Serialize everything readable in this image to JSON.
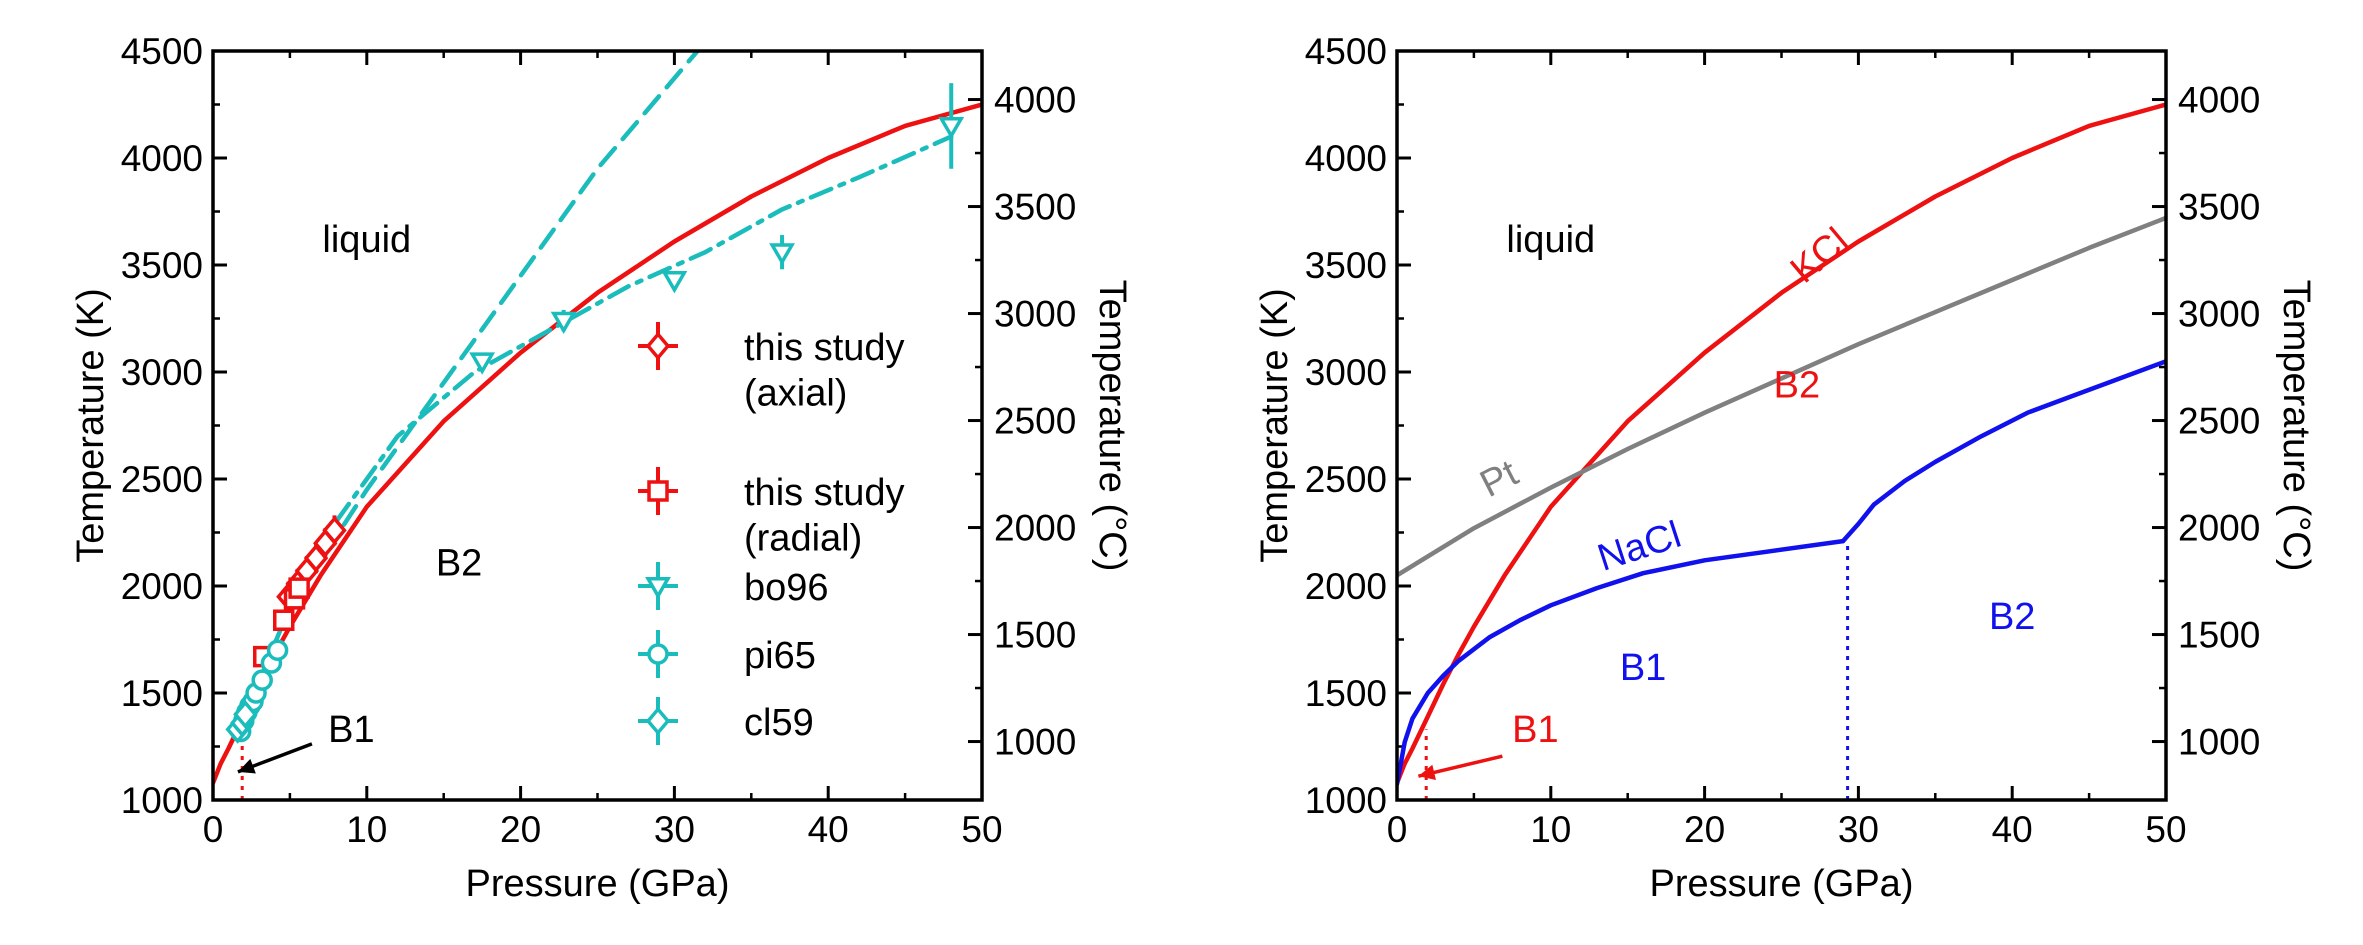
{
  "colors": {
    "kcl": "#ee1111",
    "cyan": "#1bbcbc",
    "nacl": "#1111ee",
    "pt": "#808080",
    "black": "#000000"
  },
  "chart_data": [
    {
      "type": "line",
      "xlabel": "Pressure (GPa)",
      "ylabel": "Temperature (K)",
      "y2label": "Temperature (°C)",
      "xlim": [
        0,
        50
      ],
      "ylim": [
        1000,
        4500
      ],
      "xticks": [
        0,
        10,
        20,
        30,
        40,
        50
      ],
      "yticks": [
        1000,
        1500,
        2000,
        2500,
        3000,
        3500,
        4000,
        4500
      ],
      "y2ticks": [
        1000,
        1500,
        2000,
        2500,
        3000,
        3500,
        4000
      ],
      "regions": [
        {
          "text": "liquid",
          "x": 10,
          "y": 3560,
          "color": "#000000"
        },
        {
          "text": "B2",
          "x": 16,
          "y": 2050,
          "color": "#000000"
        },
        {
          "text": "B1",
          "x": 9,
          "y": 1270,
          "color": "#000000"
        }
      ],
      "lines": [
        {
          "role": "melting-curve",
          "color": "#ee1111",
          "style": "solid",
          "x": [
            0,
            0.5,
            1,
            2,
            3,
            4,
            5,
            7,
            10,
            15,
            20,
            25,
            30,
            35,
            40,
            45,
            50
          ],
          "y": [
            1080,
            1170,
            1240,
            1390,
            1540,
            1680,
            1810,
            2050,
            2370,
            2770,
            3090,
            3370,
            3610,
            3820,
            4000,
            4150,
            4250
          ]
        },
        {
          "role": "b1-b2-boundary",
          "color": "#ee1111",
          "style": "dotted",
          "x": [
            1.9,
            1.9
          ],
          "y": [
            1000,
            1330
          ]
        },
        {
          "role": "fit-dashed",
          "color": "#1bbcbc",
          "style": "dashed",
          "x": [
            1.5,
            5,
            10,
            15,
            20,
            25,
            31.5
          ],
          "y": [
            1300,
            1900,
            2450,
            2950,
            3450,
            3950,
            4500
          ]
        },
        {
          "role": "fit-dashdot",
          "color": "#1bbcbc",
          "style": "dashdot",
          "x": [
            8,
            12,
            17,
            22,
            27,
            32,
            37,
            42,
            48
          ],
          "y": [
            2300,
            2700,
            3000,
            3200,
            3400,
            3560,
            3760,
            3910,
            4100
          ]
        }
      ],
      "series": [
        {
          "name": "this study\n(axial)",
          "marker": "diamond",
          "color": "#ee1111",
          "x": [
            4.9,
            5.5,
            6.1,
            6.7,
            7.3,
            7.9
          ],
          "y": [
            1950,
            2010,
            2070,
            2130,
            2200,
            2260
          ],
          "yerr": 70
        },
        {
          "name": "this study\n(radial)",
          "marker": "square",
          "color": "#ee1111",
          "x": [
            3.3,
            4.6,
            5.3,
            5.6
          ],
          "y": [
            1670,
            1840,
            1940,
            1990
          ],
          "yerr": 0
        },
        {
          "name": "bo96",
          "marker": "triangle-down",
          "color": "#1bbcbc",
          "x": [
            17.5,
            22.8,
            30,
            37,
            48
          ],
          "y": [
            3050,
            3240,
            3430,
            3560,
            4150
          ],
          "yerr_list": [
            0,
            50,
            0,
            80,
            200
          ]
        },
        {
          "name": "pi65",
          "marker": "circle",
          "color": "#1bbcbc",
          "x": [
            1.8,
            2.0,
            2.2,
            2.4,
            2.6,
            2.8,
            3.2,
            3.8,
            4.2
          ],
          "y": [
            1320,
            1370,
            1410,
            1440,
            1460,
            1500,
            1560,
            1640,
            1700
          ],
          "yerr": 0
        },
        {
          "name": "cl59",
          "marker": "diamond",
          "color": "#1bbcbc",
          "x": [
            1.6,
            1.9,
            2.1
          ],
          "y": [
            1330,
            1360,
            1400
          ],
          "yerr": 0
        }
      ],
      "annotation": {
        "text": "B1",
        "arrow_to": [
          1.1,
          1150
        ]
      }
    },
    {
      "type": "line",
      "xlabel": "Pressure (GPa)",
      "ylabel": "Temperature (K)",
      "y2label": "Temperature (°C)",
      "xlim": [
        0,
        50
      ],
      "ylim": [
        1000,
        4500
      ],
      "xticks": [
        0,
        10,
        20,
        30,
        40,
        50
      ],
      "yticks": [
        1000,
        1500,
        2000,
        2500,
        3000,
        3500,
        4000,
        4500
      ],
      "y2ticks": [
        1000,
        1500,
        2000,
        2500,
        3000,
        3500,
        4000
      ],
      "regions": [
        {
          "text": "liquid",
          "x": 10,
          "y": 3560,
          "color": "#000000"
        },
        {
          "text": "B2",
          "x": 26,
          "y": 2880,
          "color": "#ee1111"
        },
        {
          "text": "B1",
          "x": 16,
          "y": 1560,
          "color": "#1111ee"
        },
        {
          "text": "B2",
          "x": 40,
          "y": 1800,
          "color": "#1111ee"
        }
      ],
      "labels": [
        {
          "text": "KCl",
          "x": 28,
          "y": 3500,
          "color": "#ee1111",
          "rotate": -40
        },
        {
          "text": "Pt",
          "x": 7,
          "y": 2450,
          "color": "#808080",
          "rotate": -27
        },
        {
          "text": "NaCl",
          "x": 16,
          "y": 2130,
          "color": "#1111ee",
          "rotate": -18
        }
      ],
      "lines": [
        {
          "name": "KCl",
          "color": "#ee1111",
          "style": "solid",
          "x": [
            0,
            0.5,
            1,
            2,
            3,
            4,
            5,
            7,
            10,
            15,
            20,
            25,
            30,
            35,
            40,
            45,
            50
          ],
          "y": [
            1080,
            1170,
            1240,
            1390,
            1540,
            1680,
            1810,
            2050,
            2370,
            2770,
            3090,
            3370,
            3610,
            3820,
            4000,
            4150,
            4250
          ]
        },
        {
          "name": "Pt",
          "color": "#808080",
          "style": "solid",
          "x": [
            0,
            5,
            10,
            15,
            20,
            25,
            30,
            35,
            40,
            45,
            50
          ],
          "y": [
            2050,
            2270,
            2460,
            2640,
            2810,
            2970,
            3130,
            3280,
            3430,
            3580,
            3720
          ]
        },
        {
          "name": "NaCl",
          "color": "#1111ee",
          "style": "solid",
          "x": [
            0,
            0.5,
            1,
            2,
            3,
            4,
            6,
            8,
            10,
            13,
            16,
            20,
            24,
            29
          ],
          "y": [
            1075,
            1270,
            1380,
            1500,
            1580,
            1650,
            1760,
            1840,
            1910,
            1990,
            2060,
            2120,
            2160,
            2210
          ]
        },
        {
          "name": "NaCl-B2",
          "color": "#1111ee",
          "style": "solid",
          "x": [
            29,
            30,
            31,
            33,
            35,
            38,
            41,
            44,
            47,
            50
          ],
          "y": [
            2210,
            2290,
            2380,
            2490,
            2580,
            2700,
            2810,
            2890,
            2970,
            3050
          ]
        },
        {
          "name": "NaCl-B1B2",
          "color": "#1111ee",
          "style": "dotted",
          "x": [
            29.3,
            29.3
          ],
          "y": [
            1000,
            2200
          ]
        },
        {
          "name": "KCl-B1B2",
          "color": "#ee1111",
          "style": "dotted",
          "x": [
            1.9,
            1.9
          ],
          "y": [
            1000,
            1330
          ]
        }
      ],
      "annotation": {
        "text": "B1",
        "arrow_to": [
          1.0,
          1130
        ],
        "color": "#ee1111"
      }
    }
  ]
}
